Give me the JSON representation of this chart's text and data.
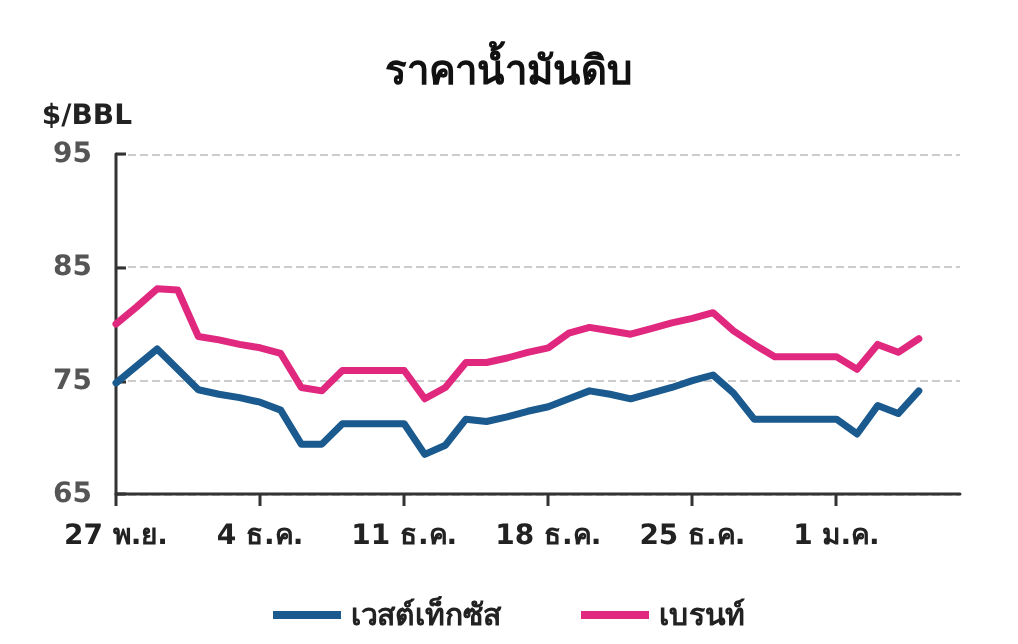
{
  "chart_data": {
    "type": "line",
    "title": "ราคาน้ำมันดิบ",
    "ylabel": "$/BBL",
    "categories": [
      "27 พ.ย.",
      null,
      null,
      null,
      null,
      null,
      null,
      "4 ธ.ค.",
      null,
      null,
      null,
      null,
      null,
      null,
      "11 ธ.ค.",
      null,
      null,
      null,
      null,
      null,
      null,
      "18 ธ.ค.",
      null,
      null,
      null,
      null,
      null,
      null,
      "25 ธ.ค.",
      null,
      null,
      null,
      null,
      null,
      null,
      "1 ม.ค.",
      null,
      null,
      null,
      null,
      null,
      null
    ],
    "series": [
      {
        "name": "เวสต์เท็กซัส",
        "color": "#1a5a8e",
        "values": [
          74.8,
          76.3,
          77.8,
          76.0,
          74.2,
          73.8,
          73.5,
          73.1,
          72.4,
          69.4,
          69.4,
          71.2,
          71.2,
          71.2,
          71.2,
          68.5,
          69.3,
          71.6,
          71.4,
          71.8,
          72.3,
          72.7,
          73.4,
          74.1,
          73.8,
          73.4,
          73.9,
          74.4,
          75.0,
          75.5,
          73.9,
          71.6,
          71.6,
          71.6,
          71.6,
          71.6,
          70.3,
          72.8,
          72.1,
          74.1,
          null,
          null
        ]
      },
      {
        "name": "เบรนท์",
        "color": "#e0287f",
        "values": [
          80.0,
          81.5,
          83.1,
          83.0,
          78.9,
          78.6,
          78.2,
          77.9,
          77.4,
          74.4,
          74.1,
          75.9,
          75.9,
          75.9,
          75.9,
          73.4,
          74.4,
          76.6,
          76.6,
          77.0,
          77.5,
          77.9,
          79.2,
          79.7,
          79.4,
          79.1,
          79.6,
          80.1,
          80.5,
          81.0,
          79.4,
          78.2,
          77.1,
          77.1,
          77.1,
          77.1,
          76.0,
          78.2,
          77.5,
          78.7,
          null,
          null
        ]
      }
    ],
    "ylim": [
      65,
      95
    ],
    "yticks": [
      65,
      75,
      85,
      95
    ],
    "grid": "y",
    "legend": "bottom",
    "marker": "none",
    "line_style": "solid"
  }
}
